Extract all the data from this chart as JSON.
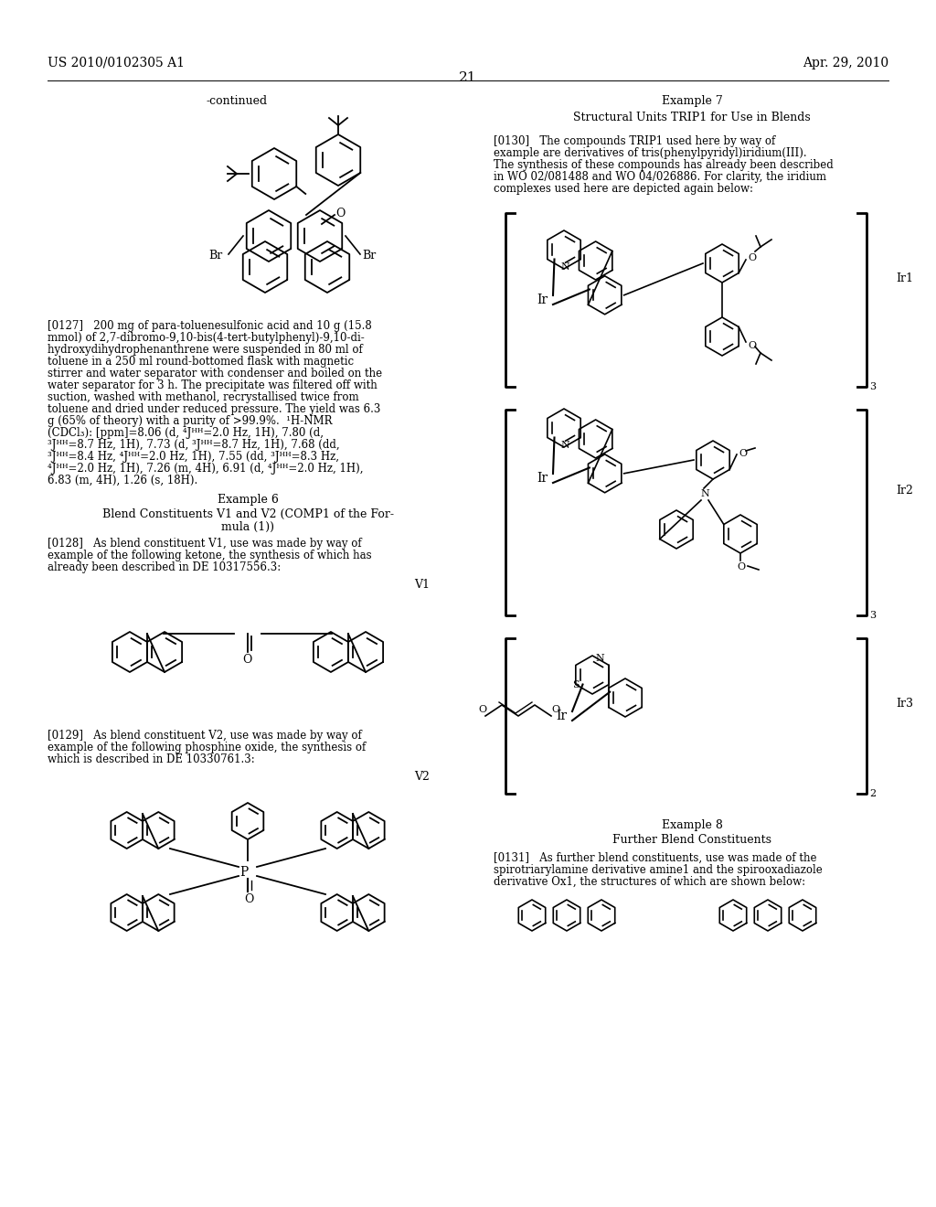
{
  "bg_color": "#ffffff",
  "header_left": "US 2010/0102305 A1",
  "header_right": "Apr. 29, 2010",
  "page_number": "21",
  "continued_label": "-continued",
  "text_0127_lines": [
    "[0127]   200 mg of para-toluenesulfonic acid and 10 g (15.8",
    "mmol) of 2,7-dibromo-9,10-bis(4-tert-butylphenyl)-9,10-di-",
    "hydroxydihydrophenanthrene were suspended in 80 ml of",
    "toluene in a 250 ml round-bottomed flask with magnetic",
    "stirrer and water separator with condenser and boiled on the",
    "water separator for 3 h. The precipitate was filtered off with",
    "suction, washed with methanol, recrystallised twice from",
    "toluene and dried under reduced pressure. The yield was 6.3",
    "g (65% of theory) with a purity of >99.9%.  ¹H-NMR",
    "(CDCl₃): [ppm]=8.06 (d, ⁴Jᴴᴴ=2.0 Hz, 1H), 7.80 (d,",
    "³Jᴴᴴ=8.7 Hz, 1H), 7.73 (d, ³Jᴴᴴ=8.7 Hz, 1H), 7.68 (dd,",
    "³Jᴴᴴ=8.4 Hz, ⁴Jᴴᴴ=2.0 Hz, 1H), 7.55 (dd, ³Jᴴᴴ=8.3 Hz,",
    "⁴Jᴴᴴ=2.0 Hz, 1H), 7.26 (m, 4H), 6.91 (d, ⁴Jᴴᴴ=2.0 Hz, 1H),",
    "6.83 (m, 4H), 1.26 (s, 18H)."
  ],
  "text_0128_lines": [
    "[0128]   As blend constituent V1, use was made by way of",
    "example of the following ketone, the synthesis of which has",
    "already been described in DE 10317556.3:"
  ],
  "text_0129_lines": [
    "[0129]   As blend constituent V2, use was made by way of",
    "example of the following phosphine oxide, the synthesis of",
    "which is described in DE 10330761.3:"
  ],
  "text_0130_lines": [
    "[0130]   The compounds TRIP1 used here by way of",
    "example are derivatives of tris(phenylpyridyl)iridium(III).",
    "The synthesis of these compounds has already been described",
    "in WO 02/081488 and WO 04/026886. For clarity, the iridium",
    "complexes used here are depicted again below:"
  ],
  "text_0131_lines": [
    "[0131]   As further blend constituents, use was made of the",
    "spirotriarylamine derivative amine1 and the spirooxadiazole",
    "derivative Ox1, the structures of which are shown below:"
  ]
}
